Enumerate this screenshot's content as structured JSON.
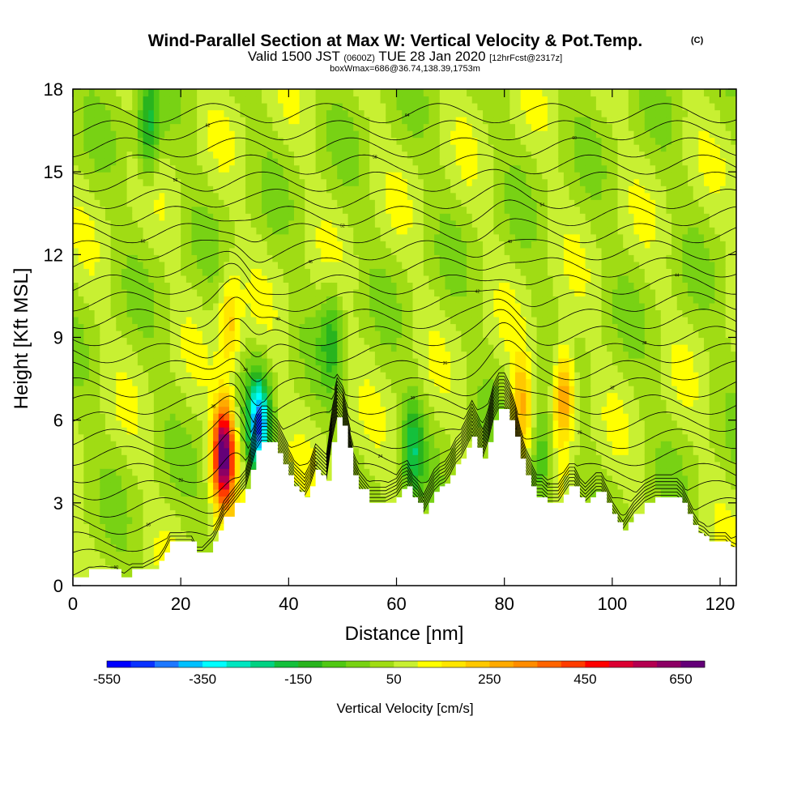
{
  "title": {
    "main": "Wind-Parallel Section at Max W: Vertical Velocity & Pot.Temp.",
    "copyright": "(C)",
    "valid_prefix": "Valid 1500 JST",
    "valid_zulu": "(0600Z)",
    "valid_date": "TUE 28 Jan 2020",
    "forecast": "[12hrFcst@2317z]",
    "box_info": "boxWmax=686@36.74,138.39,1753m"
  },
  "chart_data": {
    "type": "heatmap",
    "xlabel": "Distance [nm]",
    "ylabel": "Height [Kft MSL]",
    "xlim": [
      0,
      123
    ],
    "ylim": [
      0,
      18
    ],
    "xticks": [
      "0",
      "20",
      "40",
      "60",
      "80",
      "100",
      "120"
    ],
    "yticks": [
      "0",
      "3",
      "6",
      "9",
      "12",
      "15",
      "18"
    ],
    "xtick_values": [
      0,
      20,
      40,
      60,
      80,
      100,
      120
    ],
    "ytick_values": [
      0,
      3,
      6,
      9,
      12,
      15,
      18
    ],
    "terrain": {
      "x": [
        0,
        3,
        8,
        9,
        11,
        13,
        16,
        17,
        18,
        22,
        23,
        24,
        26,
        27,
        28,
        30,
        32,
        33,
        34,
        35,
        36,
        38,
        39,
        40,
        41,
        42,
        43,
        44,
        45,
        46,
        47,
        48,
        49,
        50,
        51,
        52,
        53,
        55,
        58,
        60,
        61,
        62,
        63,
        64,
        65,
        66,
        67,
        68,
        69,
        70,
        71,
        72,
        73,
        74,
        75,
        76,
        77,
        78,
        79,
        80,
        81,
        82,
        83,
        84,
        85,
        86,
        87,
        88,
        90,
        91,
        92,
        93,
        94,
        95,
        96,
        97,
        98,
        99,
        100,
        101,
        102,
        103,
        104,
        106,
        108,
        110,
        112,
        113,
        114,
        115,
        116,
        117,
        118,
        120,
        121,
        122,
        123
      ],
      "height": [
        0.3,
        0.6,
        0.6,
        0.3,
        0.6,
        0.6,
        0.9,
        1.2,
        1.6,
        1.6,
        1.2,
        1.2,
        1.6,
        2.0,
        2.5,
        3.0,
        3.5,
        4.2,
        4.9,
        5.2,
        5.2,
        4.8,
        4.4,
        4.0,
        3.6,
        3.4,
        3.2,
        3.6,
        4.2,
        4.0,
        3.8,
        5.2,
        6.1,
        5.8,
        5.0,
        4.0,
        3.5,
        3.0,
        3.0,
        3.2,
        3.5,
        3.6,
        3.2,
        3.0,
        2.6,
        3.0,
        3.4,
        3.6,
        3.7,
        4.0,
        4.4,
        4.6,
        5.0,
        5.4,
        5.0,
        4.6,
        5.2,
        6.0,
        6.4,
        6.4,
        6.0,
        5.4,
        4.6,
        4.0,
        3.6,
        3.2,
        3.2,
        3.0,
        3.0,
        3.3,
        3.6,
        3.6,
        3.2,
        3.0,
        3.2,
        3.4,
        3.4,
        3.0,
        2.6,
        2.3,
        2.0,
        2.3,
        2.6,
        3.0,
        3.2,
        3.2,
        3.2,
        3.0,
        2.6,
        2.2,
        1.9,
        1.8,
        1.6,
        1.6,
        1.6,
        1.4,
        1.3
      ]
    },
    "vertical_velocity_features": [
      {
        "x": 28,
        "z": 4.8,
        "w": 650
      },
      {
        "x": 34.5,
        "z": 5.8,
        "w": -450
      },
      {
        "x": 91,
        "z": 7.0,
        "w": 300
      },
      {
        "x": 83,
        "z": 6.5,
        "w": 220
      },
      {
        "x": 29,
        "z": 9.5,
        "w": 180
      },
      {
        "x": 14,
        "z": 16.5,
        "w": -220
      },
      {
        "x": 63,
        "z": 5.0,
        "w": -200
      },
      {
        "x": 87,
        "z": 4.5,
        "w": -200
      },
      {
        "x": 48,
        "z": 9.0,
        "w": -150
      }
    ],
    "colorbar": {
      "label": "Vertical Velocity [cm/s]",
      "tick_labels": [
        "-550",
        "-350",
        "-150",
        "50",
        "250",
        "450",
        "650"
      ],
      "colors": [
        "#0000ff",
        "#0a32ff",
        "#1e78ff",
        "#00c0ff",
        "#00ffff",
        "#00e6c0",
        "#00d282",
        "#14c03c",
        "#28b41e",
        "#50c814",
        "#78d214",
        "#a0dc14",
        "#c8f032",
        "#ffff00",
        "#ffe600",
        "#ffc800",
        "#ffaa00",
        "#ff8c00",
        "#ff6400",
        "#ff3c00",
        "#ff0000",
        "#dc0032",
        "#b40050",
        "#8c0064",
        "#640078"
      ]
    },
    "potential_temperature_contours": {
      "levels": [
        "10",
        "12",
        "14",
        "16",
        "18",
        "20",
        "22",
        "24",
        "26",
        "28",
        "30",
        "32",
        "34",
        "36",
        "38",
        "40",
        "42",
        "44",
        "46",
        "48",
        "50",
        "52",
        "54",
        "56",
        "58",
        "60",
        "62",
        "64"
      ]
    },
    "grid": false,
    "legend": "bottom"
  }
}
